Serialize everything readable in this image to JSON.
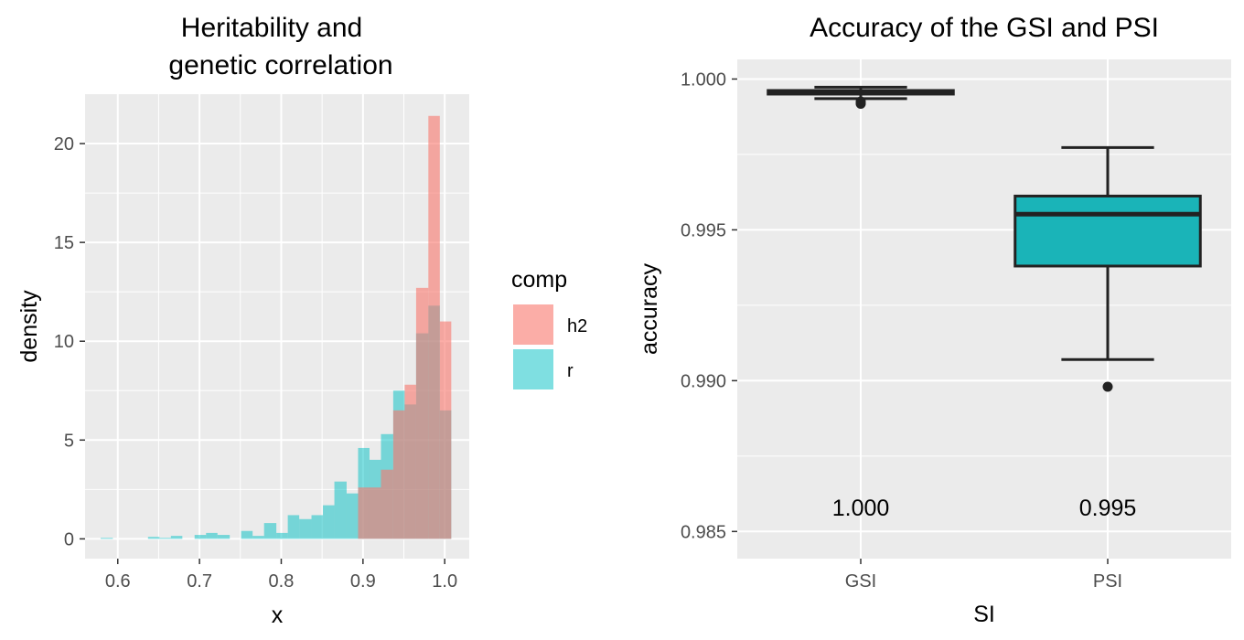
{
  "chart_data": [
    {
      "type": "histogram",
      "title_lines": [
        "Heritability and",
        "genetic correlation"
      ],
      "xlabel": "x",
      "ylabel": "density",
      "xlim": [
        0.56,
        1.03
      ],
      "ylim": [
        -1.0,
        22.5
      ],
      "x_ticks": [
        0.6,
        0.7,
        0.8,
        0.9,
        1.0
      ],
      "x_tick_labels": [
        "0.6",
        "0.7",
        "0.8",
        "0.9",
        "1.0"
      ],
      "y_ticks": [
        0,
        5,
        10,
        15,
        20
      ],
      "y_tick_labels": [
        "0",
        "5",
        "10",
        "15",
        "20"
      ],
      "grid": true,
      "legend": {
        "title": "comp",
        "placement": "right",
        "entries": [
          {
            "label": "h2",
            "color": "#F8766D"
          },
          {
            "label": "r",
            "color": "#00BFC4"
          }
        ]
      },
      "bin_width": 0.0143,
      "series": [
        {
          "name": "h2",
          "color": "#F8766D",
          "bins": [
            {
              "x0": 0.894,
              "x1": 0.908,
              "density": 2.6
            },
            {
              "x0": 0.908,
              "x1": 0.922,
              "density": 2.6
            },
            {
              "x0": 0.922,
              "x1": 0.937,
              "density": 3.5
            },
            {
              "x0": 0.937,
              "x1": 0.951,
              "density": 6.5
            },
            {
              "x0": 0.951,
              "x1": 0.965,
              "density": 7.8
            },
            {
              "x0": 0.965,
              "x1": 0.98,
              "density": 12.7
            },
            {
              "x0": 0.98,
              "x1": 0.994,
              "density": 21.4
            },
            {
              "x0": 0.994,
              "x1": 1.008,
              "density": 11.0
            }
          ]
        },
        {
          "name": "r",
          "color": "#00BFC4",
          "bins": [
            {
              "x0": 0.579,
              "x1": 0.594,
              "density": 0.05
            },
            {
              "x0": 0.637,
              "x1": 0.651,
              "density": 0.1
            },
            {
              "x0": 0.651,
              "x1": 0.665,
              "density": 0.05
            },
            {
              "x0": 0.665,
              "x1": 0.679,
              "density": 0.15
            },
            {
              "x0": 0.694,
              "x1": 0.708,
              "density": 0.2
            },
            {
              "x0": 0.708,
              "x1": 0.722,
              "density": 0.3
            },
            {
              "x0": 0.722,
              "x1": 0.737,
              "density": 0.2
            },
            {
              "x0": 0.751,
              "x1": 0.765,
              "density": 0.4
            },
            {
              "x0": 0.765,
              "x1": 0.779,
              "density": 0.15
            },
            {
              "x0": 0.779,
              "x1": 0.794,
              "density": 0.8
            },
            {
              "x0": 0.794,
              "x1": 0.808,
              "density": 0.3
            },
            {
              "x0": 0.808,
              "x1": 0.822,
              "density": 1.2
            },
            {
              "x0": 0.822,
              "x1": 0.837,
              "density": 1.0
            },
            {
              "x0": 0.837,
              "x1": 0.851,
              "density": 1.2
            },
            {
              "x0": 0.851,
              "x1": 0.865,
              "density": 1.7
            },
            {
              "x0": 0.865,
              "x1": 0.88,
              "density": 2.9
            },
            {
              "x0": 0.88,
              "x1": 0.894,
              "density": 2.3
            },
            {
              "x0": 0.894,
              "x1": 0.908,
              "density": 4.6
            },
            {
              "x0": 0.908,
              "x1": 0.922,
              "density": 4.0
            },
            {
              "x0": 0.922,
              "x1": 0.937,
              "density": 5.3
            },
            {
              "x0": 0.937,
              "x1": 0.951,
              "density": 7.5
            },
            {
              "x0": 0.951,
              "x1": 0.965,
              "density": 6.8
            },
            {
              "x0": 0.965,
              "x1": 0.98,
              "density": 10.4
            },
            {
              "x0": 0.98,
              "x1": 0.994,
              "density": 11.8
            },
            {
              "x0": 0.994,
              "x1": 1.008,
              "density": 6.5
            }
          ]
        }
      ]
    },
    {
      "type": "box",
      "title_lines": [
        "Accuracy of the GSI and PSI"
      ],
      "xlabel": "SI",
      "ylabel": "accuracy",
      "ylim": [
        0.9841,
        1.00065
      ],
      "y_ticks": [
        0.985,
        0.99,
        0.995,
        1.0
      ],
      "y_tick_labels": [
        "0.985",
        "0.990",
        "0.995",
        "1.000"
      ],
      "grid": true,
      "categories": [
        "GSI",
        "PSI"
      ],
      "boxes": [
        {
          "category": "GSI",
          "fill": "#F8766D",
          "lower_whisker": 0.99935,
          "q1": 0.9995,
          "median": 0.99958,
          "q3": 0.99962,
          "upper_whisker": 0.99973,
          "outliers": [
            0.99918,
            0.99925
          ],
          "label": "1.000",
          "label_y": 0.9858
        },
        {
          "category": "PSI",
          "fill": "#1AB4B8",
          "lower_whisker": 0.9907,
          "q1": 0.9938,
          "median": 0.99552,
          "q3": 0.99612,
          "upper_whisker": 0.99773,
          "outliers": [
            0.9898
          ],
          "label": "0.995",
          "label_y": 0.9858
        }
      ]
    }
  ]
}
